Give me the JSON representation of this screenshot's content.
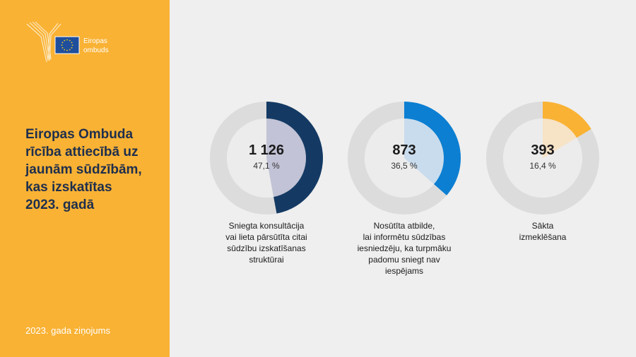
{
  "sidebar": {
    "logo_text": "Eiropas\nombuds",
    "title": "Eiropas Ombuda\nrīcība attiecībā uz\njaunām sūdzībām,\nkas izskatītas\n2023. gadā",
    "footer": "2023. gada ziņojums"
  },
  "colors": {
    "sidebar": "#f9b234",
    "track": "#dcdcdc",
    "eu_blue": "#1f4e9c",
    "eu_star": "#f7d117"
  },
  "chart_data": {
    "type": "pie",
    "style": "donut",
    "items": [
      {
        "value": "1 126",
        "percent_label": "47,1 %",
        "percent": 47.1,
        "caption": "Sniegta konsultācija\nvai lieta pārsūtīta citai\nsūdzību izskatīšanas\nstruktūrai",
        "color": "#143a64",
        "inner_color": "#c2c3d6"
      },
      {
        "value": "873",
        "percent_label": "36,5 %",
        "percent": 36.5,
        "caption": "Nosūtīta atbilde,\nlai informētu sūdzības\niesniedzēju, ka turpmāku\npadomu sniegt nav\niespējams",
        "color": "#0c7fd2",
        "inner_color": "#c9dced"
      },
      {
        "value": "393",
        "percent_label": "16,4 %",
        "percent": 16.4,
        "caption": "Sākta\nizmeklēšana",
        "color": "#f9b234",
        "inner_color": "#f7e3c6"
      }
    ]
  }
}
